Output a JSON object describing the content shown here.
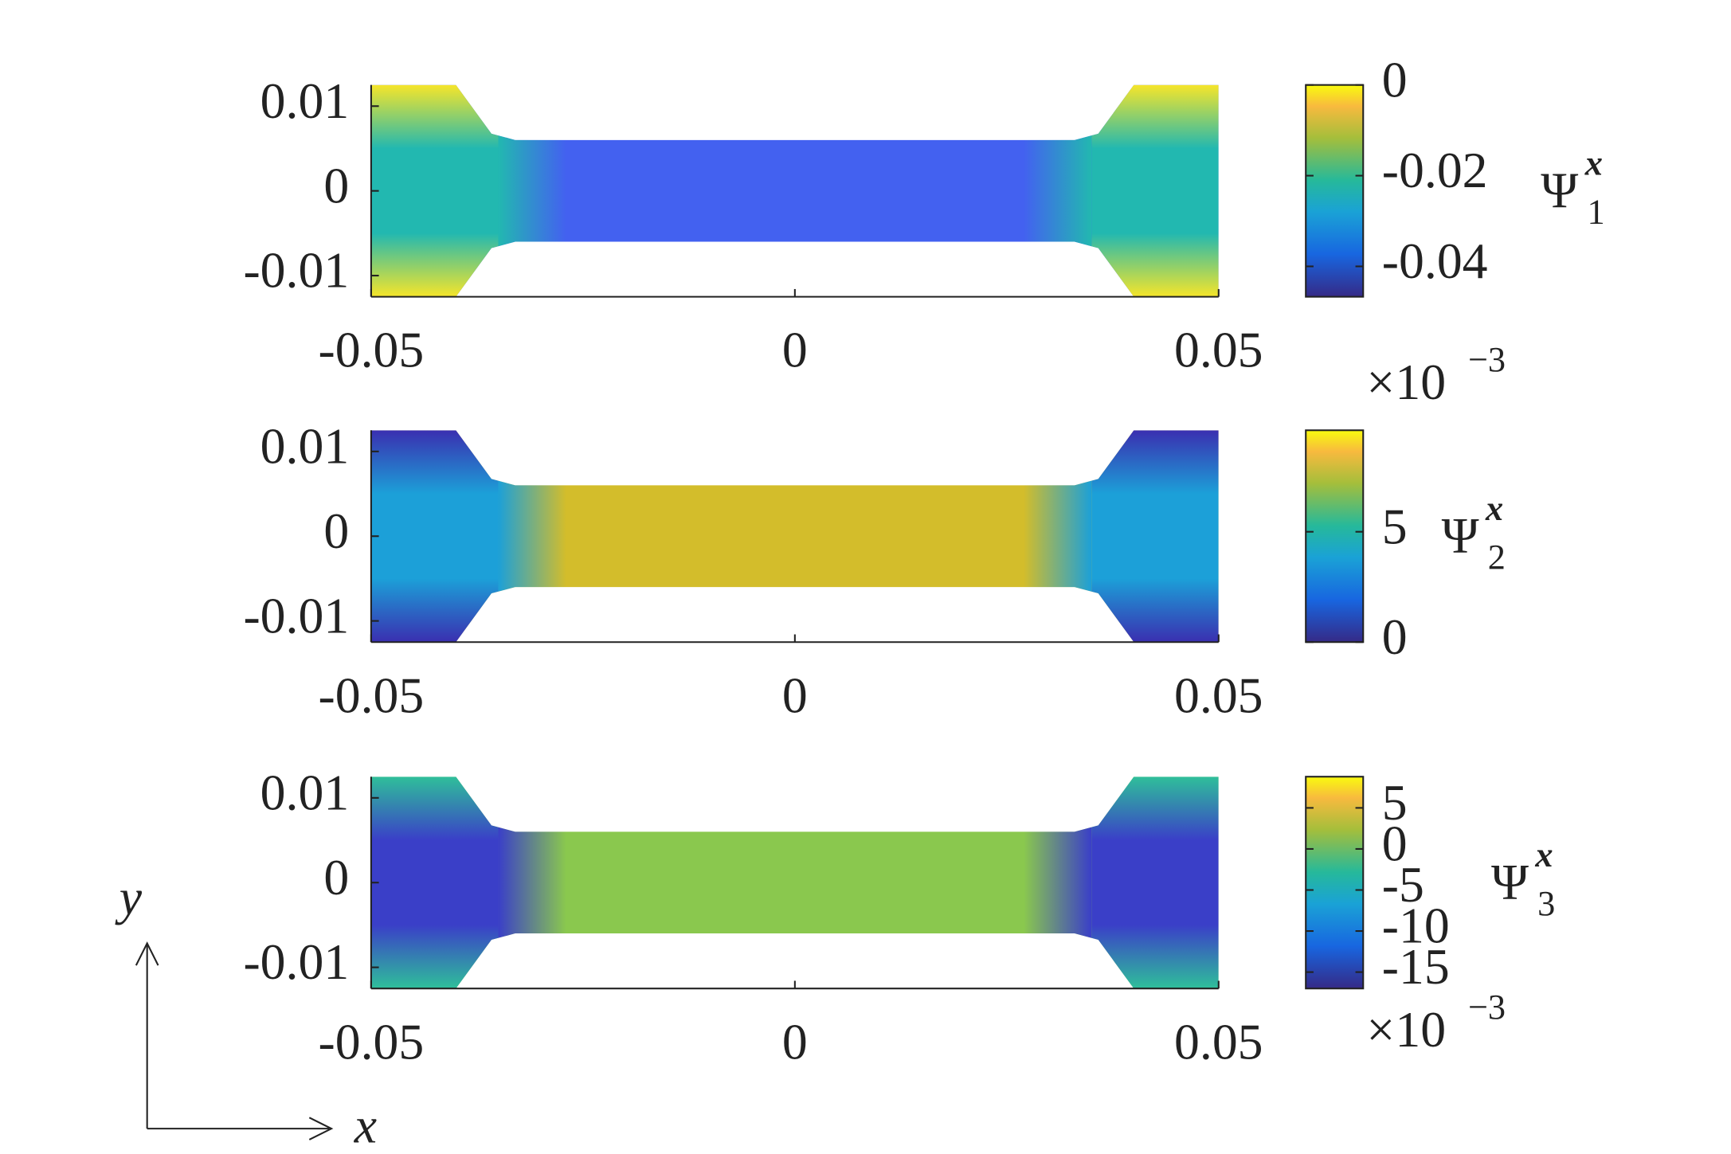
{
  "chart_data": [
    {
      "type": "field",
      "xlim": [
        -0.05,
        0.05
      ],
      "ylim": [
        -0.0125,
        0.0125
      ],
      "xticks": [
        -0.05,
        0,
        0.05
      ],
      "yticks": [
        -0.01,
        0,
        0.01
      ],
      "colorbar": {
        "clim": [
          -0.0467,
          0
        ],
        "ticks": [
          -0.04,
          -0.02,
          0
        ],
        "label": {
          "symbol": "Ψ",
          "sub": "1",
          "sup": "x"
        }
      }
    },
    {
      "type": "field",
      "xlim": [
        -0.05,
        0.05
      ],
      "ylim": [
        -0.0125,
        0.0125
      ],
      "xticks": [
        -0.05,
        0,
        0.05
      ],
      "yticks": [
        -0.01,
        0,
        0.01
      ],
      "colorbar": {
        "clim": [
          0,
          9.6
        ],
        "ticks": [
          0,
          5
        ],
        "label": {
          "symbol": "Ψ",
          "sub": "2",
          "sup": "x"
        },
        "multiplier": {
          "base": "×10",
          "exponent": "−3"
        }
      }
    },
    {
      "type": "field",
      "xlim": [
        -0.05,
        0.05
      ],
      "ylim": [
        -0.0125,
        0.0125
      ],
      "xticks": [
        -0.05,
        0,
        0.05
      ],
      "yticks": [
        -0.01,
        0,
        0.01
      ],
      "colorbar": {
        "clim": [
          -17,
          8.8
        ],
        "ticks": [
          -15,
          -10,
          -5,
          0,
          5
        ],
        "label": {
          "symbol": "Ψ",
          "sub": "3",
          "sup": "x"
        },
        "multiplier": {
          "base": "×10",
          "exponent": "−3"
        }
      }
    }
  ],
  "axes_arrows": {
    "x": "x",
    "y": "y"
  }
}
